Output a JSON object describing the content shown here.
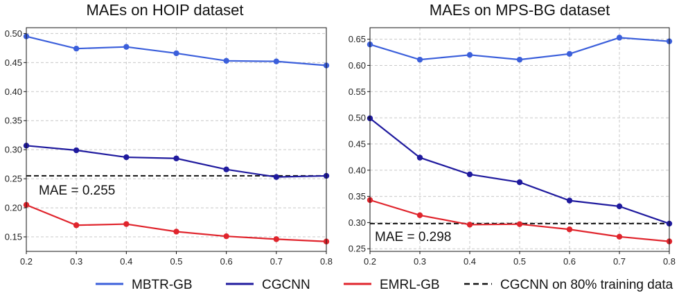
{
  "chart_data": [
    {
      "type": "line",
      "title": "MAEs on HOIP dataset",
      "xlabel": "",
      "ylabel": "",
      "x": [
        0.2,
        0.3,
        0.4,
        0.5,
        0.6,
        0.7,
        0.8
      ],
      "xlim": [
        0.2,
        0.8
      ],
      "ylim": [
        0.125,
        0.51
      ],
      "xticks": [
        "0.2",
        "0.3",
        "0.4",
        "0.5",
        "0.6",
        "0.7",
        "0.8"
      ],
      "yticks": [
        "0.15",
        "0.20",
        "0.25",
        "0.30",
        "0.35",
        "0.40",
        "0.45",
        "0.50"
      ],
      "ytick_values": [
        0.15,
        0.2,
        0.25,
        0.3,
        0.35,
        0.4,
        0.45,
        0.5
      ],
      "grid": true,
      "series": [
        {
          "name": "MBTR-GB",
          "color": "#3b5fdb",
          "values": [
            0.495,
            0.474,
            0.477,
            0.466,
            0.453,
            0.452,
            0.445
          ]
        },
        {
          "name": "CGCNN",
          "color": "#1f1a9e",
          "values": [
            0.307,
            0.299,
            0.287,
            0.285,
            0.266,
            0.253,
            0.255
          ]
        },
        {
          "name": "EMRL-GB",
          "color": "#e0242c",
          "values": [
            0.205,
            0.17,
            0.172,
            0.159,
            0.151,
            0.146,
            0.142
          ]
        }
      ],
      "reference_line": {
        "name": "CGCNN on 80% training data",
        "value": 0.255,
        "label": "MAE = 0.255"
      }
    },
    {
      "type": "line",
      "title": "MAEs on MPS-BG dataset",
      "xlabel": "",
      "ylabel": "",
      "x": [
        0.2,
        0.3,
        0.4,
        0.5,
        0.6,
        0.7,
        0.8
      ],
      "xlim": [
        0.2,
        0.8
      ],
      "ylim": [
        0.245,
        0.672
      ],
      "xticks": [
        "0.2",
        "0.3",
        "0.4",
        "0.5",
        "0.6",
        "0.7",
        "0.8"
      ],
      "yticks": [
        "0.25",
        "0.30",
        "0.35",
        "0.40",
        "0.45",
        "0.50",
        "0.55",
        "0.60",
        "0.65"
      ],
      "ytick_values": [
        0.25,
        0.3,
        0.35,
        0.4,
        0.45,
        0.5,
        0.55,
        0.6,
        0.65
      ],
      "grid": true,
      "series": [
        {
          "name": "MBTR-GB",
          "color": "#3b5fdb",
          "values": [
            0.64,
            0.611,
            0.62,
            0.611,
            0.622,
            0.653,
            0.646
          ]
        },
        {
          "name": "CGCNN",
          "color": "#1f1a9e",
          "values": [
            0.499,
            0.424,
            0.392,
            0.377,
            0.342,
            0.331,
            0.298
          ]
        },
        {
          "name": "EMRL-GB",
          "color": "#e0242c",
          "values": [
            0.343,
            0.314,
            0.296,
            0.297,
            0.287,
            0.273,
            0.264
          ]
        }
      ],
      "reference_line": {
        "name": "CGCNN on 80% training data",
        "value": 0.298,
        "label": "MAE = 0.298"
      }
    }
  ],
  "legend": {
    "placement": "bottom",
    "items": [
      {
        "label": "MBTR-GB",
        "color": "#3b5fdb",
        "style": "solid"
      },
      {
        "label": "CGCNN",
        "color": "#1f1a9e",
        "style": "solid"
      },
      {
        "label": "EMRL-GB",
        "color": "#e0242c",
        "style": "solid"
      },
      {
        "label": "CGCNN on 80% training data",
        "color": "#111111",
        "style": "dashed"
      }
    ]
  }
}
